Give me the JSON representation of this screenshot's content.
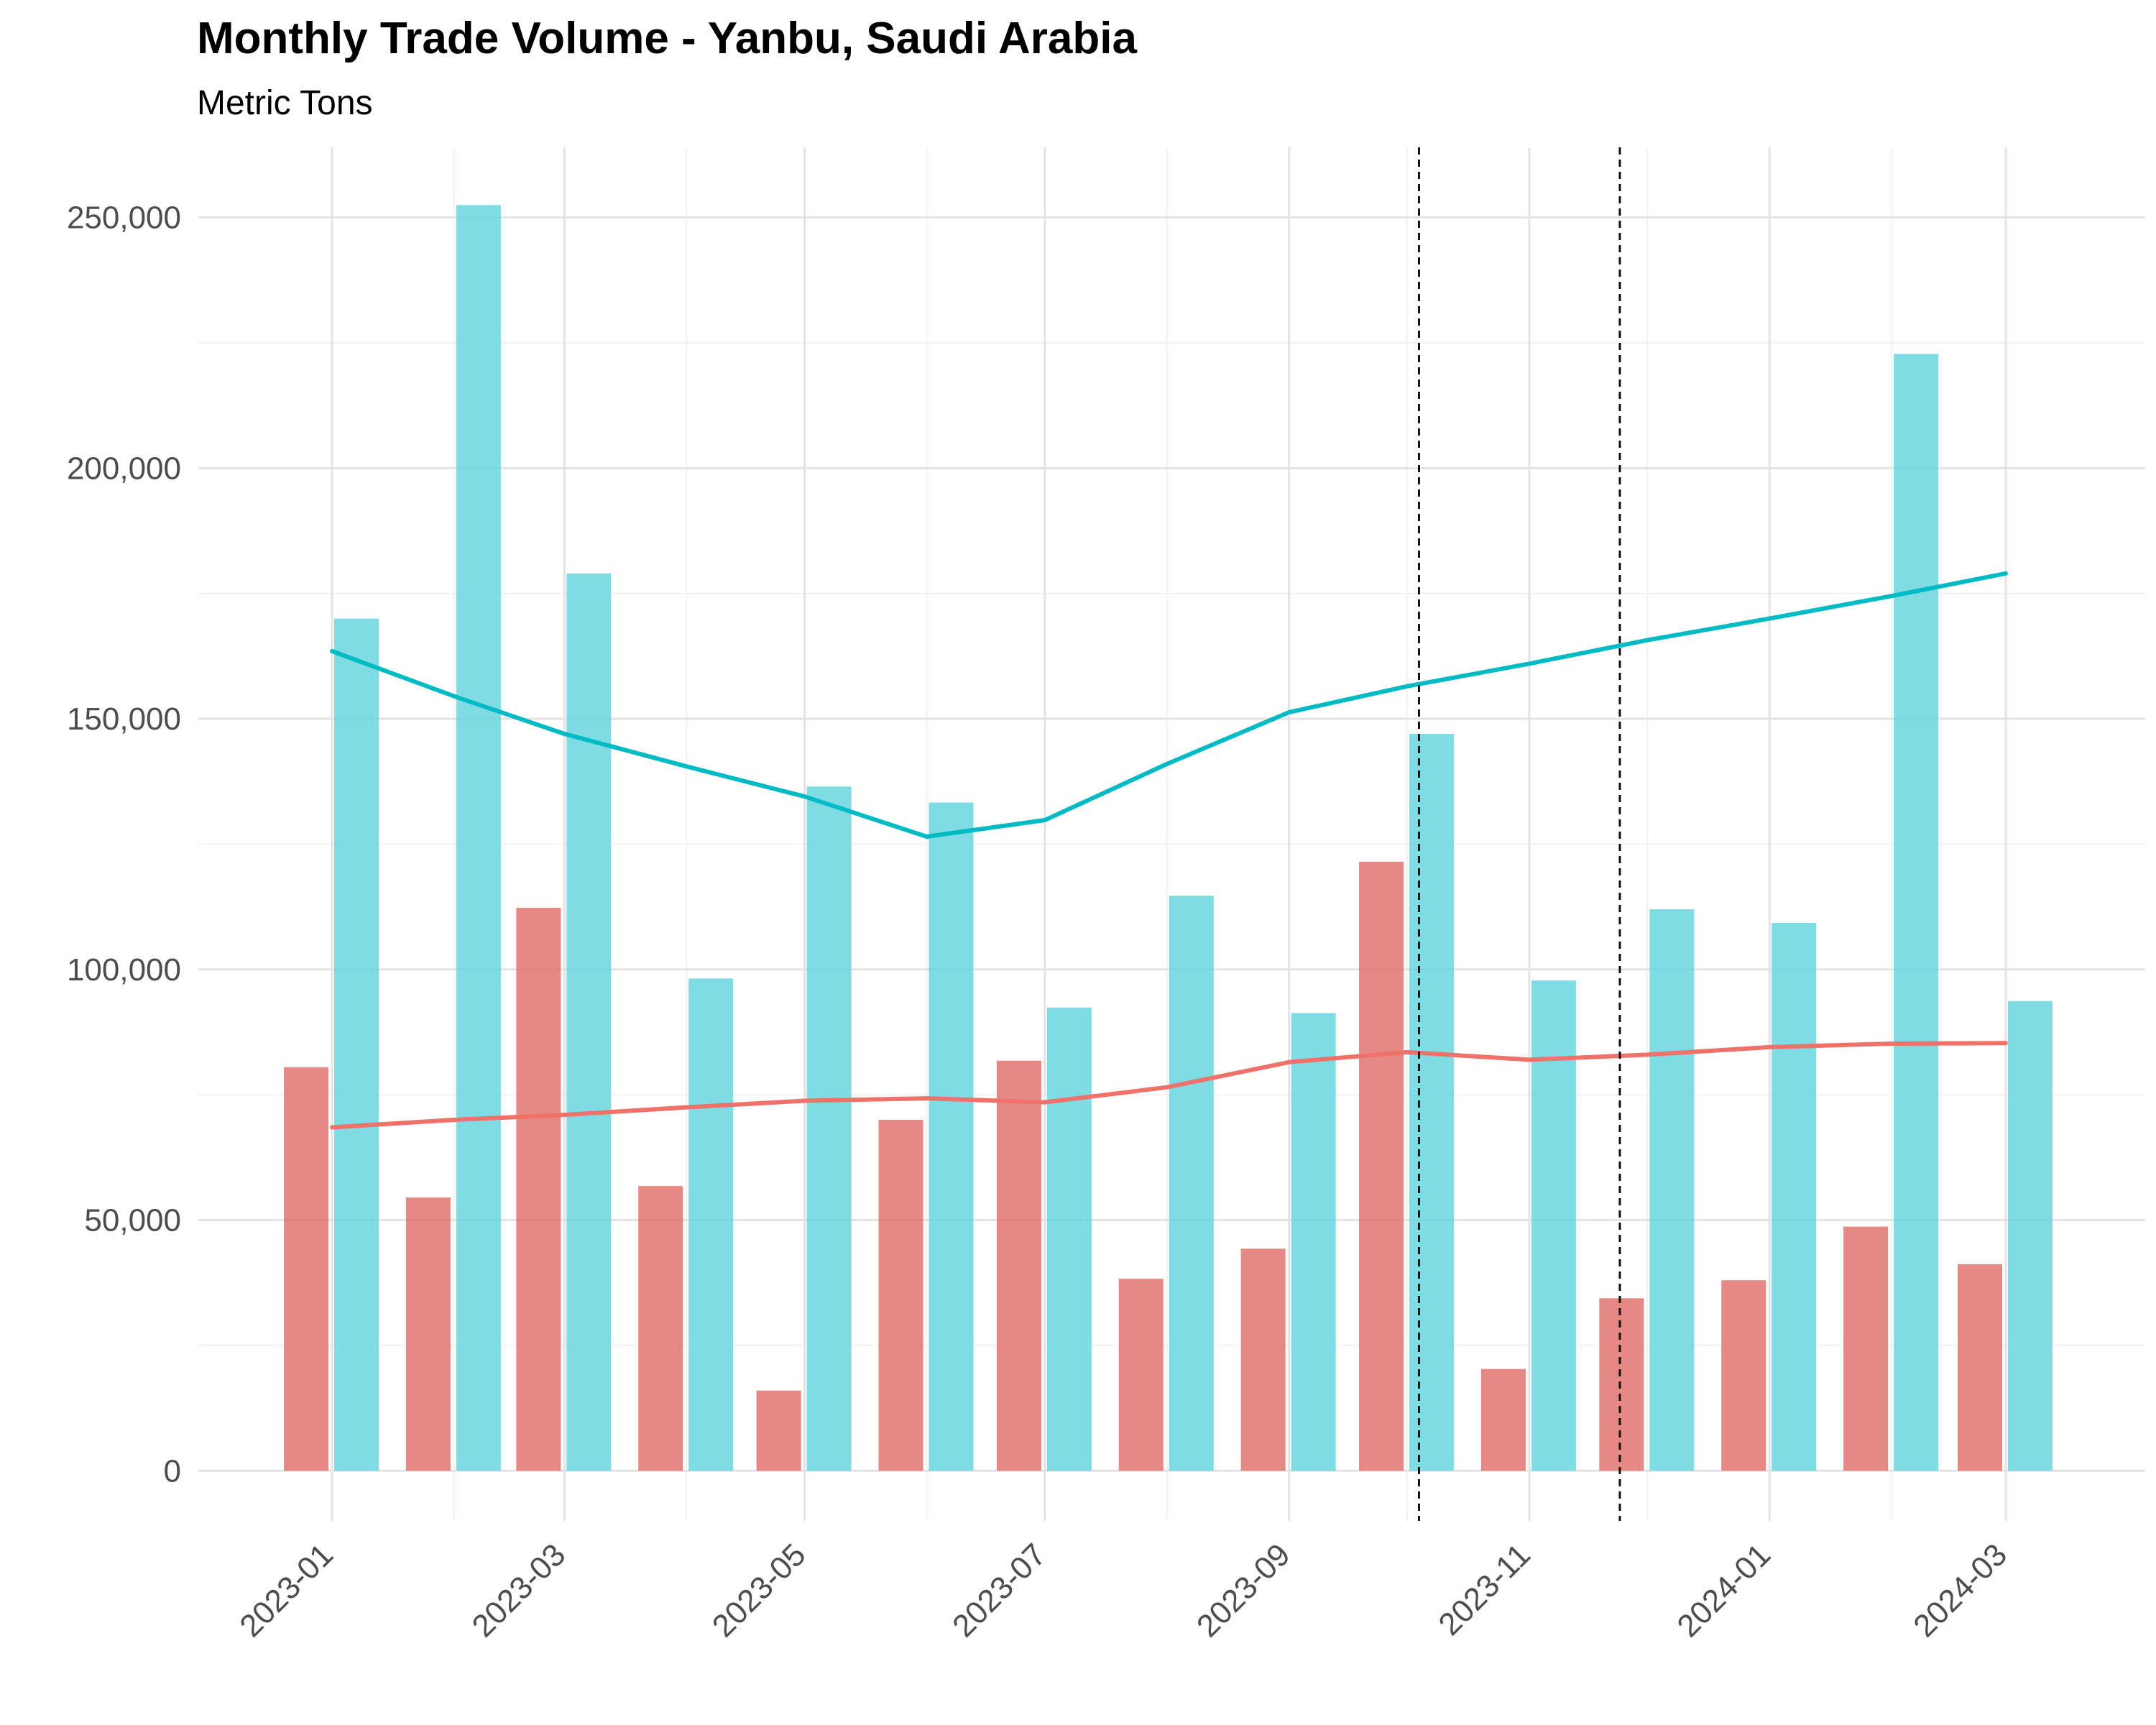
{
  "chart_data": {
    "type": "bar",
    "title": "Monthly Trade Volume - Yanbu, Saudi Arabia",
    "subtitle": "Metric Tons",
    "xlabel": "",
    "ylabel": "",
    "ylim": [
      -10000,
      264000
    ],
    "y_ticks": [
      0,
      50000,
      100000,
      150000,
      200000,
      250000
    ],
    "y_tick_labels": [
      "0",
      "50,000",
      "100,000",
      "150,000",
      "200,000",
      "250,000"
    ],
    "x_tick_labels": [
      "2023-01",
      "2023-03",
      "2023-05",
      "2023-07",
      "2023-09",
      "2023-11",
      "2024-01",
      "2024-03"
    ],
    "categories": [
      "2023-01",
      "2023-02",
      "2023-03",
      "2023-04",
      "2023-05",
      "2023-06",
      "2023-07",
      "2023-08",
      "2023-09",
      "2023-10",
      "2023-11",
      "2023-12",
      "2024-01",
      "2024-02",
      "2024-03"
    ],
    "series": [
      {
        "color": "#e06c65",
        "values": [
          80500,
          54500,
          112300,
          56800,
          16000,
          70000,
          81800,
          38300,
          44300,
          121500,
          20300,
          34400,
          38000,
          48700,
          41200
        ],
        "trend": [
          68500,
          70000,
          71000,
          72500,
          73800,
          74300,
          73500,
          76500,
          81500,
          83500,
          82000,
          83000,
          84500,
          85200,
          85300
        ]
      },
      {
        "color": "#5fd3de",
        "values": [
          170000,
          252500,
          179000,
          98200,
          136500,
          133300,
          92400,
          114700,
          91300,
          147000,
          97800,
          112000,
          109300,
          222800,
          93700
        ],
        "trend": [
          163500,
          154500,
          147000,
          140500,
          134500,
          126500,
          129800,
          141000,
          151300,
          156500,
          161000,
          165700,
          170000,
          174500,
          179000
        ]
      }
    ],
    "reference_lines_x": [
      "2023-10-04",
      "2023-11-24"
    ],
    "grid": true,
    "legend": "none"
  }
}
